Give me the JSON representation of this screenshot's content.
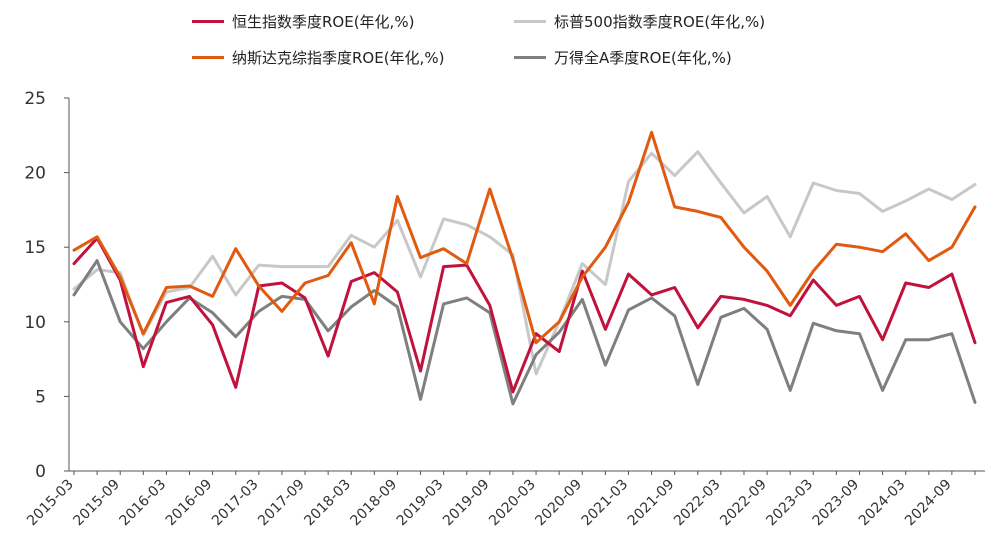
{
  "chart_data": {
    "type": "line",
    "title": "",
    "xlabel": "",
    "ylabel": "",
    "ylim": [
      0,
      25
    ],
    "yticks": [
      0,
      5,
      10,
      15,
      20,
      25
    ],
    "grid": false,
    "legend_position": "top",
    "x": [
      "2015-03",
      "2015-06",
      "2015-09",
      "2015-12",
      "2016-03",
      "2016-06",
      "2016-09",
      "2016-12",
      "2017-03",
      "2017-06",
      "2017-09",
      "2017-12",
      "2018-03",
      "2018-06",
      "2018-09",
      "2018-12",
      "2019-03",
      "2019-06",
      "2019-09",
      "2019-12",
      "2020-03",
      "2020-06",
      "2020-09",
      "2020-12",
      "2021-03",
      "2021-06",
      "2021-09",
      "2021-12",
      "2022-03",
      "2022-06",
      "2022-09",
      "2022-12",
      "2023-03",
      "2023-06",
      "2023-09",
      "2023-12",
      "2024-03",
      "2024-06",
      "2024-09",
      "2024-12"
    ],
    "xtick_labels": [
      "2015-03",
      "2015-09",
      "2016-03",
      "2016-09",
      "2017-03",
      "2017-09",
      "2018-03",
      "2018-09",
      "2019-03",
      "2019-09",
      "2020-03",
      "2020-09",
      "2021-03",
      "2021-09",
      "2022-03",
      "2022-09",
      "2023-03",
      "2023-09",
      "2024-03",
      "2024-09"
    ],
    "series": [
      {
        "name": "恒生指数季度ROE(年化,%)",
        "color": "#C0123C",
        "values": [
          13.9,
          15.6,
          12.8,
          7.0,
          11.3,
          11.7,
          9.8,
          5.6,
          12.4,
          12.6,
          11.6,
          7.7,
          12.7,
          13.3,
          12.0,
          6.7,
          13.7,
          13.8,
          11.1,
          5.3,
          9.2,
          8.0,
          13.4,
          9.5,
          13.2,
          11.8,
          12.3,
          9.6,
          11.7,
          11.5,
          11.1,
          10.4,
          12.8,
          11.1,
          11.7,
          8.8,
          12.6,
          12.3,
          13.2,
          8.6
        ]
      },
      {
        "name": "标普500指数季度ROE(年化,%)",
        "color": "#C8C8C8",
        "values": [
          12.2,
          13.5,
          13.3,
          9.1,
          12.0,
          12.3,
          14.4,
          11.8,
          13.8,
          13.7,
          13.7,
          13.7,
          15.8,
          15.0,
          16.8,
          13.0,
          16.9,
          16.5,
          15.7,
          14.5,
          6.5,
          10.0,
          13.9,
          12.5,
          19.4,
          21.3,
          19.8,
          21.4,
          19.3,
          17.3,
          18.4,
          15.7,
          19.3,
          18.8,
          18.6,
          17.4,
          18.1,
          18.9,
          18.2,
          19.2
        ]
      },
      {
        "name": "纳斯达克综指季度ROE(年化,%)",
        "color": "#E05A10",
        "values": [
          14.8,
          15.7,
          13.0,
          9.2,
          12.3,
          12.4,
          11.7,
          14.9,
          12.4,
          10.7,
          12.6,
          13.1,
          15.3,
          11.2,
          18.4,
          14.3,
          14.9,
          13.9,
          18.9,
          14.2,
          8.6,
          10.0,
          13.0,
          15.0,
          18.0,
          22.7,
          17.7,
          17.4,
          17.0,
          15.0,
          13.4,
          11.1,
          13.4,
          15.2,
          15.0,
          14.7,
          15.9,
          14.1,
          15.0,
          17.7
        ]
      },
      {
        "name": "万得全A季度ROE(年化,%)",
        "color": "#7F7F7F",
        "values": [
          11.8,
          14.1,
          10.0,
          8.2,
          10.0,
          11.6,
          10.6,
          9.0,
          10.7,
          11.7,
          11.5,
          9.4,
          11.0,
          12.1,
          11.0,
          4.8,
          11.2,
          11.6,
          10.6,
          4.5,
          7.8,
          9.3,
          11.5,
          7.1,
          10.8,
          11.6,
          10.4,
          5.8,
          10.3,
          10.9,
          9.5,
          5.4,
          9.9,
          9.4,
          9.2,
          5.4,
          8.8,
          8.8,
          9.2,
          4.6
        ]
      }
    ]
  }
}
